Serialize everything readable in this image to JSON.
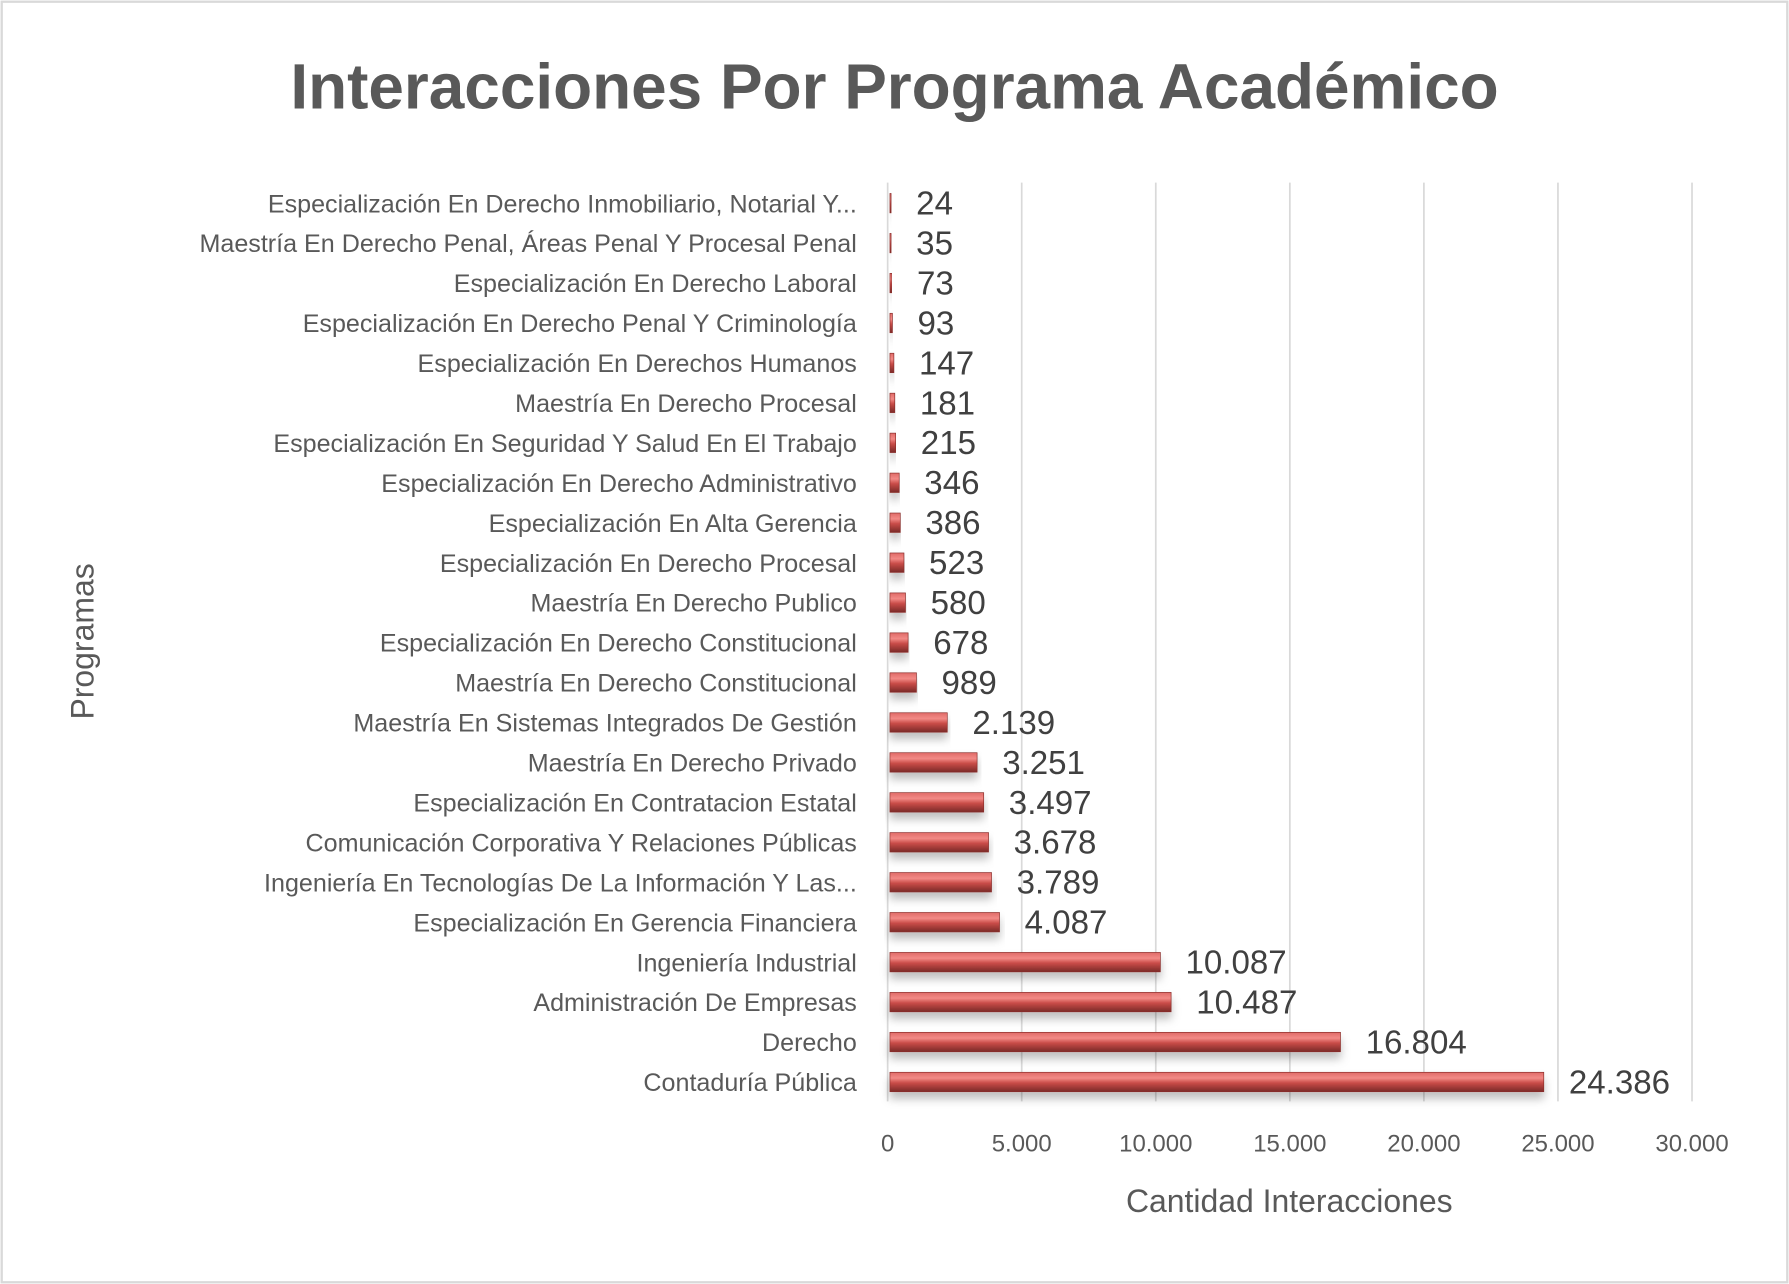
{
  "chart_data": {
    "type": "bar",
    "orientation": "horizontal",
    "title": "Interacciones Por Programa Académico",
    "xlabel": "Cantidad Interacciones",
    "ylabel": "Programas",
    "xlim": [
      0,
      30000
    ],
    "xticks": [
      0,
      5000,
      10000,
      15000,
      20000,
      25000,
      30000
    ],
    "xtick_labels": [
      "0",
      "5.000",
      "10.000",
      "15.000",
      "20.000",
      "25.000",
      "30.000"
    ],
    "grid": true,
    "legend": "none",
    "bar_color": "#C0504D",
    "categories": [
      "Especialización En Derecho Inmobiliario, Notarial Y...",
      "Maestría En Derecho Penal, Áreas Penal Y Procesal Penal",
      "Especialización En Derecho Laboral",
      "Especialización En Derecho Penal Y Criminología",
      "Especialización En Derechos Humanos",
      "Maestría En Derecho Procesal",
      "Especialización En Seguridad Y Salud En El Trabajo",
      "Especialización En Derecho Administrativo",
      "Especialización En Alta Gerencia",
      "Especialización En Derecho Procesal",
      "Maestría En Derecho Publico",
      "Especialización En Derecho Constitucional",
      "Maestría En Derecho Constitucional",
      "Maestría En Sistemas Integrados De Gestión",
      "Maestría En Derecho Privado",
      "Especialización En Contratacion Estatal",
      "Comunicación Corporativa Y Relaciones Públicas",
      "Ingeniería En Tecnologías De La Información Y Las...",
      "Especialización En Gerencia Financiera",
      "Ingeniería Industrial",
      "Administración De Empresas",
      "Derecho",
      "Contaduría Pública"
    ],
    "values": [
      24,
      35,
      73,
      93,
      147,
      181,
      215,
      346,
      386,
      523,
      580,
      678,
      989,
      2139,
      3251,
      3497,
      3678,
      3789,
      4087,
      10087,
      10487,
      16804,
      24386
    ],
    "value_labels": [
      "24",
      "35",
      "73",
      "93",
      "147",
      "181",
      "215",
      "346",
      "386",
      "523",
      "580",
      "678",
      "989",
      "2.139",
      "3.251",
      "3.497",
      "3.678",
      "3.789",
      "4.087",
      "10.087",
      "10.487",
      "16.804",
      "24.386"
    ]
  }
}
